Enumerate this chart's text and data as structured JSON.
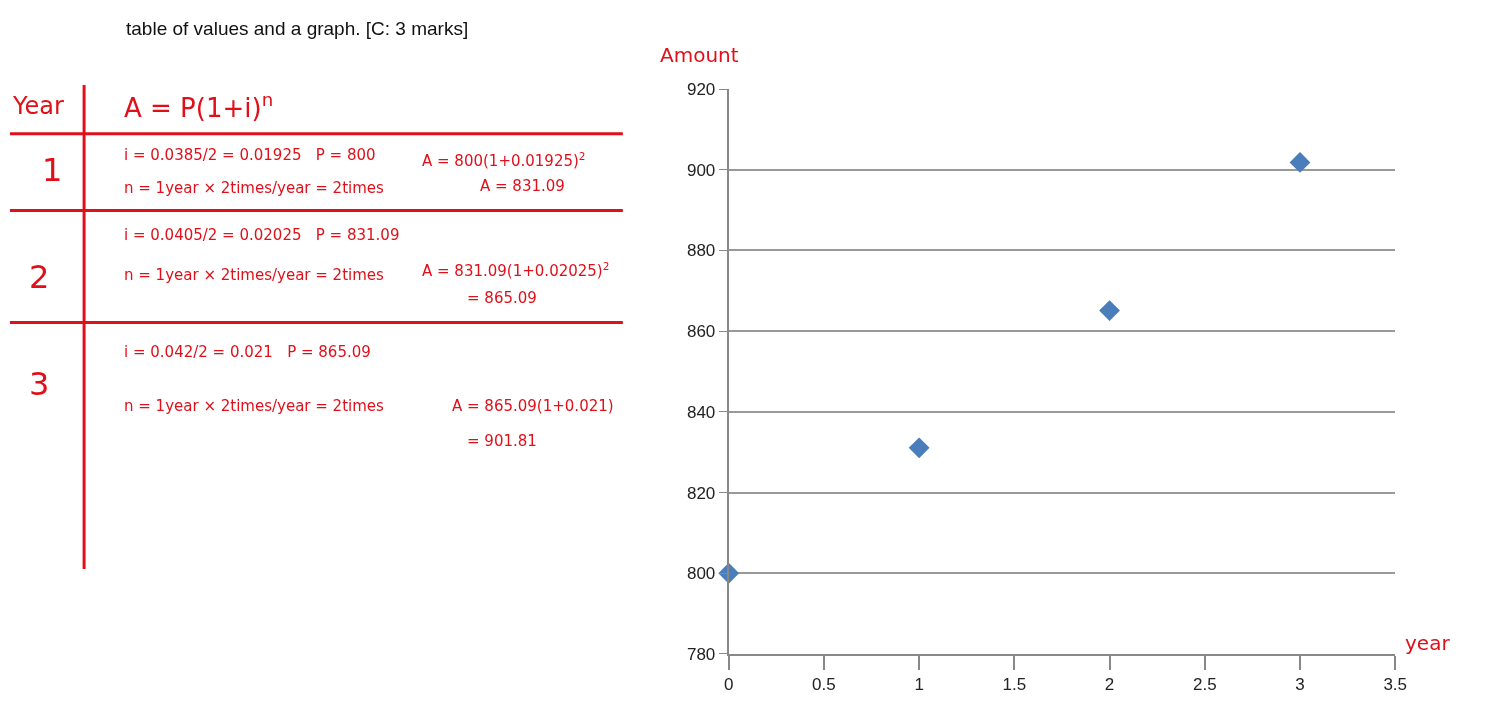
{
  "chart_data": {
    "type": "scatter",
    "xlabel": "year",
    "ylabel": "Amount",
    "x": [
      0,
      1,
      2,
      3
    ],
    "series": [
      {
        "color": "#4a7ebb",
        "values": [
          800,
          831.09,
          865.09,
          901.81
        ]
      }
    ],
    "xlim": [
      0,
      3.5
    ],
    "xticks": [
      0,
      0.5,
      1,
      1.5,
      2,
      2.5,
      3,
      3.5
    ],
    "ylim": [
      780,
      920
    ],
    "yticks": [
      780,
      800,
      820,
      840,
      860,
      880,
      900,
      920
    ],
    "grid": "y",
    "marker": "diamond",
    "annotations": [
      "table of values and a graph. [C: 3 marks]",
      "Year",
      "A = P(1+i)$^{n}$",
      "1",
      "i = 0.0385/2 = 0.01925   P = 800",
      "n = 1year × 2times/year = 2times",
      "A = 800(1+0.01925)$^{2}$",
      "A = 831.09",
      "2",
      "i = 0.0405/2 = 0.02025   P = 831.09",
      "n = 1year × 2times/year = 2times",
      "A = 831.09(1+0.02025)$^{2}$",
      "= 865.09",
      "3",
      "i = 0.042/2 = 0.021   P = 865.09",
      "n = 1year × 2times/year = 2times",
      "A = 865.09(1+0.021)",
      "= 901.81"
    ]
  }
}
